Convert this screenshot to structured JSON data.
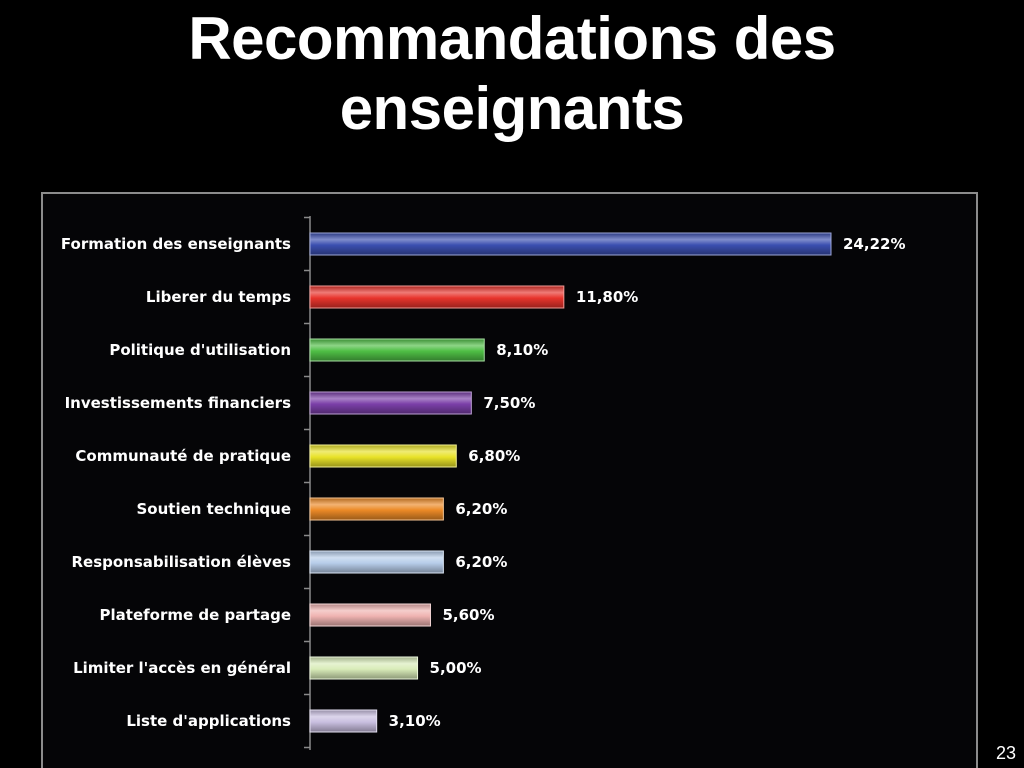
{
  "slide": {
    "title_line1": "Recommandations des",
    "title_line2": "enseignants",
    "page_number": "23"
  },
  "colors": {
    "background": "#000000",
    "chart_background": "#050507",
    "frame_border": "#8c8c8c",
    "text": "#ffffff"
  },
  "chart_data": {
    "type": "bar",
    "orientation": "horizontal",
    "title": "",
    "xlabel": "",
    "ylabel": "",
    "xlim": [
      0,
      24.22
    ],
    "grid": false,
    "legend": "none",
    "categories": [
      "Formation des enseignants",
      "Liberer du temps",
      "Politique d'utilisation",
      "Investissements financiers",
      "Communauté de pratique",
      "Soutien technique",
      "Responsabilisation élèves",
      "Plateforme de partage",
      "Limiter l'accès en général",
      "Liste d'applications"
    ],
    "values": [
      24.22,
      11.8,
      8.1,
      7.5,
      6.8,
      6.2,
      6.2,
      5.6,
      5.0,
      3.1
    ],
    "value_labels": [
      "24,22%",
      "11,80%",
      "8,10%",
      "7,50%",
      "6,80%",
      "6,20%",
      "6,20%",
      "5,60%",
      "5,00%",
      "3,10%"
    ],
    "bar_colors": [
      "#3b4fb0",
      "#e8342c",
      "#4fbf45",
      "#7b3fa8",
      "#e8e228",
      "#ec8a27",
      "#b7cdea",
      "#efb3b1",
      "#d9ecb9",
      "#c9bfe0"
    ]
  }
}
